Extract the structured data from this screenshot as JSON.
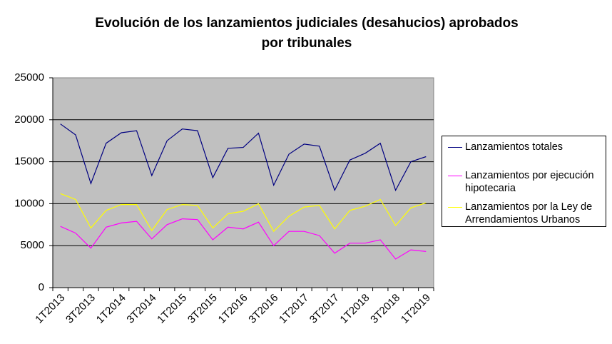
{
  "chart_data": {
    "type": "line",
    "title": [
      "Evolución de los lanzamientos judiciales (desahucios) aprobados",
      "por tribunales"
    ],
    "categories": [
      "1T2013",
      null,
      "3T2013",
      null,
      "1T2014",
      null,
      "3T2014",
      null,
      "1T2015",
      null,
      "3T2015",
      null,
      "1T2016",
      null,
      "3T2016",
      null,
      "1T2017",
      null,
      "3T2017",
      null,
      "1T2018",
      null,
      "3T2018",
      null,
      "1T2019"
    ],
    "series": [
      {
        "name": "Lanzamientos totales",
        "color": "#000080",
        "values": [
          19500,
          18200,
          12400,
          17200,
          18450,
          18700,
          13350,
          17500,
          18900,
          18700,
          13100,
          16600,
          16700,
          18400,
          12200,
          15900,
          17100,
          16850,
          11600,
          15200,
          16000,
          17200,
          11600,
          15000,
          15600
        ]
      },
      {
        "name": "Lanzamientos por ejecución hipotecaria",
        "color": "#ff00ff",
        "values": [
          7300,
          6500,
          4700,
          7200,
          7700,
          7900,
          5800,
          7500,
          8200,
          8100,
          5700,
          7200,
          7000,
          7800,
          5000,
          6700,
          6700,
          6200,
          4100,
          5300,
          5300,
          5700,
          3400,
          4500,
          4300
        ]
      },
      {
        "name": "Lanzamientos por la Ley de Arrendamientos Urbanos",
        "color": "#ffff00",
        "values": [
          11200,
          10500,
          7100,
          9200,
          9900,
          9900,
          6800,
          9300,
          9900,
          9800,
          7100,
          8800,
          9100,
          10000,
          6700,
          8500,
          9600,
          9800,
          7000,
          9200,
          9700,
          10500,
          7400,
          9500,
          10100
        ]
      }
    ],
    "ylim": [
      0,
      25000
    ],
    "yticks": [
      0,
      5000,
      10000,
      15000,
      20000,
      25000
    ],
    "grid": true,
    "legend": "right"
  }
}
